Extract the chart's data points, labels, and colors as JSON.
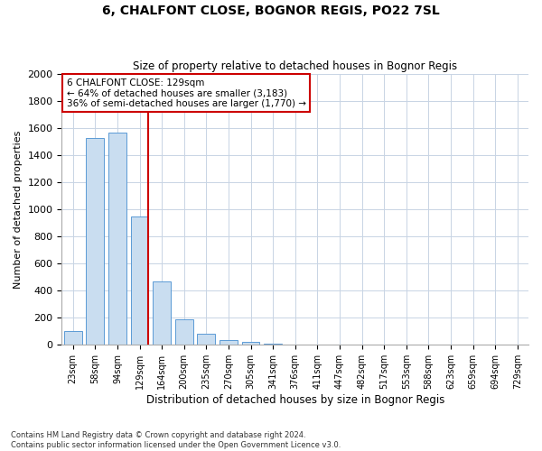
{
  "title": "6, CHALFONT CLOSE, BOGNOR REGIS, PO22 7SL",
  "subtitle": "Size of property relative to detached houses in Bognor Regis",
  "xlabel": "Distribution of detached houses by size in Bognor Regis",
  "ylabel": "Number of detached properties",
  "categories": [
    "23sqm",
    "58sqm",
    "94sqm",
    "129sqm",
    "164sqm",
    "200sqm",
    "235sqm",
    "270sqm",
    "305sqm",
    "341sqm",
    "376sqm",
    "411sqm",
    "447sqm",
    "482sqm",
    "517sqm",
    "553sqm",
    "588sqm",
    "623sqm",
    "659sqm",
    "694sqm",
    "729sqm"
  ],
  "values": [
    100,
    1530,
    1570,
    950,
    470,
    190,
    85,
    35,
    22,
    10,
    0,
    0,
    0,
    0,
    0,
    0,
    0,
    0,
    0,
    0,
    0
  ],
  "bar_color": "#c9ddf0",
  "bar_edge_color": "#5b9bd5",
  "highlight_index": 3,
  "highlight_color": "#cc0000",
  "ylim": [
    0,
    2000
  ],
  "yticks": [
    0,
    200,
    400,
    600,
    800,
    1000,
    1200,
    1400,
    1600,
    1800,
    2000
  ],
  "annotation_title": "6 CHALFONT CLOSE: 129sqm",
  "annotation_line1": "← 64% of detached houses are smaller (3,183)",
  "annotation_line2": "36% of semi-detached houses are larger (1,770) →",
  "annotation_box_color": "#cc0000",
  "grid_color": "#c8d4e4",
  "background_color": "#ffffff",
  "footnote1": "Contains HM Land Registry data © Crown copyright and database right 2024.",
  "footnote2": "Contains public sector information licensed under the Open Government Licence v3.0."
}
